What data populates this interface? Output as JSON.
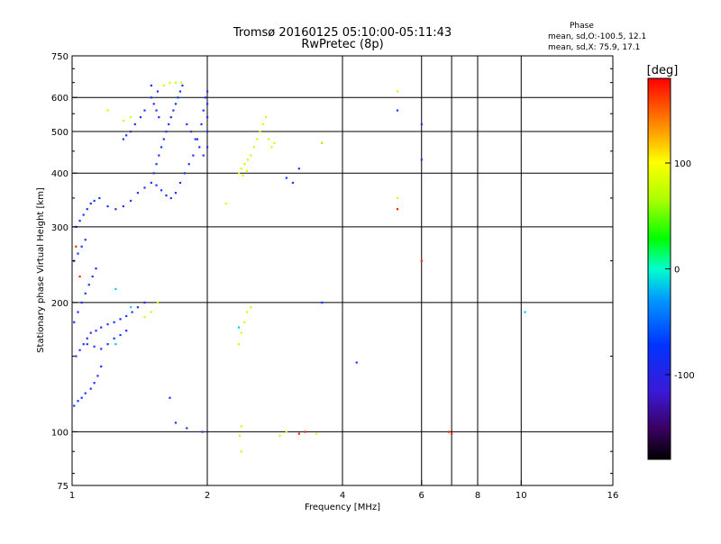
{
  "chart_data": {
    "type": "scatter",
    "title": "Tromsø 20160125 05:10:00-05:11:43",
    "subtitle": "RwPretec (8p)",
    "xlabel": "Frequency [MHz]",
    "ylabel": "Stationary phase Virtual Height [km]",
    "x_scale": "log",
    "y_scale": "log",
    "xlim": [
      1,
      16
    ],
    "ylim": [
      75,
      750
    ],
    "x_ticks": [
      {
        "value": 1,
        "label": "1"
      },
      {
        "value": 2,
        "label": "2"
      },
      {
        "value": 4,
        "label": "4"
      },
      {
        "value": 6,
        "label": "6"
      },
      {
        "value": 8,
        "label": "8"
      },
      {
        "value": 10,
        "label": "10"
      },
      {
        "value": 16,
        "label": "16"
      }
    ],
    "y_ticks": [
      {
        "value": 75,
        "label": "75"
      },
      {
        "value": 100,
        "label": "100"
      },
      {
        "value": 200,
        "label": "200"
      },
      {
        "value": 300,
        "label": "300"
      },
      {
        "value": 400,
        "label": "400"
      },
      {
        "value": 500,
        "label": "500"
      },
      {
        "value": 600,
        "label": "600"
      },
      {
        "value": 750,
        "label": "750"
      }
    ],
    "x_gridlines": [
      2,
      4,
      6,
      7,
      8,
      10
    ],
    "y_gridlines": [
      100,
      200,
      300,
      400,
      500,
      600
    ],
    "stats": {
      "heading": "Phase",
      "line_o": "mean, sd,O:-100.5, 12.1",
      "line_x": "mean, sd,X:  75.9, 17.1"
    },
    "colorbar": {
      "label": "[deg]",
      "range": [
        -180,
        180
      ],
      "ticks": [
        {
          "value": 100,
          "label": "100"
        },
        {
          "value": 0,
          "label": "0"
        },
        {
          "value": -100,
          "label": "-100"
        }
      ]
    },
    "series": [
      {
        "group": "main-trace-blue",
        "points": [
          [
            1.01,
            115
          ],
          [
            1.03,
            118
          ],
          [
            1.05,
            120
          ],
          [
            1.07,
            123
          ],
          [
            1.1,
            126
          ],
          [
            1.12,
            130
          ],
          [
            1.14,
            135
          ],
          [
            1.16,
            142
          ],
          [
            1.02,
            150
          ],
          [
            1.04,
            155
          ],
          [
            1.06,
            160
          ],
          [
            1.08,
            165
          ],
          [
            1.1,
            170
          ],
          [
            1.13,
            172
          ],
          [
            1.16,
            175
          ],
          [
            1.2,
            178
          ],
          [
            1.24,
            180
          ],
          [
            1.28,
            183
          ],
          [
            1.32,
            186
          ],
          [
            1.36,
            190
          ],
          [
            1.4,
            195
          ],
          [
            1.45,
            200
          ],
          [
            1.08,
            160
          ],
          [
            1.12,
            158
          ],
          [
            1.16,
            156
          ],
          [
            1.2,
            160
          ],
          [
            1.24,
            165
          ],
          [
            1.28,
            168
          ],
          [
            1.32,
            172
          ],
          [
            1.01,
            180
          ],
          [
            1.03,
            190
          ],
          [
            1.05,
            200
          ],
          [
            1.07,
            210
          ],
          [
            1.09,
            220
          ],
          [
            1.11,
            230
          ],
          [
            1.13,
            240
          ],
          [
            1.01,
            250
          ],
          [
            1.03,
            260
          ],
          [
            1.05,
            270
          ],
          [
            1.07,
            280
          ],
          [
            1.02,
            300
          ],
          [
            1.04,
            310
          ],
          [
            1.06,
            320
          ],
          [
            1.08,
            330
          ],
          [
            1.1,
            340
          ],
          [
            1.12,
            345
          ],
          [
            1.15,
            350
          ],
          [
            1.2,
            335
          ],
          [
            1.25,
            330
          ],
          [
            1.3,
            335
          ],
          [
            1.35,
            345
          ],
          [
            1.4,
            360
          ],
          [
            1.45,
            370
          ],
          [
            1.5,
            380
          ],
          [
            1.52,
            400
          ],
          [
            1.54,
            420
          ],
          [
            1.56,
            440
          ],
          [
            1.58,
            460
          ],
          [
            1.6,
            480
          ],
          [
            1.62,
            500
          ],
          [
            1.64,
            520
          ],
          [
            1.66,
            540
          ],
          [
            1.68,
            560
          ],
          [
            1.7,
            580
          ],
          [
            1.72,
            600
          ],
          [
            1.74,
            620
          ],
          [
            1.76,
            640
          ],
          [
            1.5,
            600
          ],
          [
            1.52,
            580
          ],
          [
            1.54,
            560
          ],
          [
            1.56,
            540
          ],
          [
            1.5,
            640
          ],
          [
            1.55,
            620
          ],
          [
            1.8,
            520
          ],
          [
            1.84,
            500
          ],
          [
            1.88,
            480
          ],
          [
            1.92,
            460
          ],
          [
            1.96,
            440
          ],
          [
            2.0,
            460
          ],
          [
            2.0,
            500
          ],
          [
            2.0,
            540
          ],
          [
            2.0,
            580
          ],
          [
            2.0,
            620
          ],
          [
            1.98,
            600
          ],
          [
            1.96,
            560
          ],
          [
            1.94,
            520
          ],
          [
            1.9,
            480
          ],
          [
            1.86,
            440
          ],
          [
            1.82,
            420
          ],
          [
            1.78,
            400
          ],
          [
            1.74,
            380
          ],
          [
            1.7,
            360
          ],
          [
            1.66,
            350
          ],
          [
            1.62,
            355
          ],
          [
            1.58,
            365
          ],
          [
            1.54,
            375
          ],
          [
            1.45,
            560
          ],
          [
            1.42,
            540
          ],
          [
            1.38,
            520
          ],
          [
            1.35,
            500
          ],
          [
            1.32,
            490
          ],
          [
            1.3,
            480
          ],
          [
            3.0,
            390
          ],
          [
            3.1,
            380
          ],
          [
            3.2,
            410
          ],
          [
            3.6,
            470
          ],
          [
            3.6,
            200
          ],
          [
            4.3,
            145
          ],
          [
            5.3,
            560
          ],
          [
            6.0,
            520
          ],
          [
            6.0,
            430
          ],
          [
            1.7,
            105
          ],
          [
            1.8,
            102
          ],
          [
            1.95,
            100
          ],
          [
            1.65,
            120
          ]
        ]
      },
      {
        "group": "secondary-trace-yellow",
        "points": [
          [
            2.35,
            400
          ],
          [
            2.38,
            410
          ],
          [
            2.42,
            420
          ],
          [
            2.46,
            430
          ],
          [
            2.5,
            440
          ],
          [
            2.54,
            460
          ],
          [
            2.58,
            480
          ],
          [
            2.62,
            500
          ],
          [
            2.66,
            520
          ],
          [
            2.7,
            540
          ],
          [
            2.74,
            480
          ],
          [
            2.78,
            460
          ],
          [
            2.82,
            470
          ],
          [
            2.4,
            395
          ],
          [
            2.45,
            405
          ],
          [
            2.35,
            160
          ],
          [
            2.38,
            170
          ],
          [
            2.42,
            180
          ],
          [
            2.45,
            190
          ],
          [
            2.5,
            195
          ],
          [
            2.38,
            103
          ],
          [
            2.36,
            98
          ],
          [
            2.38,
            90
          ],
          [
            2.9,
            98
          ],
          [
            3.0,
            100
          ],
          [
            3.5,
            99
          ],
          [
            3.6,
            470
          ],
          [
            5.3,
            350
          ],
          [
            5.3,
            620
          ],
          [
            2.2,
            340
          ],
          [
            1.3,
            530
          ],
          [
            1.35,
            540
          ],
          [
            1.2,
            560
          ],
          [
            1.6,
            640
          ],
          [
            1.65,
            650
          ],
          [
            1.7,
            650
          ],
          [
            1.75,
            650
          ],
          [
            1.55,
            200
          ],
          [
            1.5,
            190
          ],
          [
            1.45,
            185
          ]
        ]
      },
      {
        "group": "red-points",
        "points": [
          [
            3.2,
            99
          ],
          [
            3.3,
            100
          ],
          [
            6.0,
            250
          ],
          [
            6.9,
            100
          ],
          [
            7.0,
            99
          ],
          [
            5.3,
            330
          ],
          [
            1.02,
            270
          ],
          [
            1.04,
            230
          ]
        ]
      },
      {
        "group": "cyan-points",
        "points": [
          [
            2.35,
            175
          ],
          [
            1.35,
            195
          ],
          [
            1.25,
            215
          ],
          [
            10.2,
            190
          ],
          [
            1.25,
            160
          ]
        ]
      }
    ]
  }
}
